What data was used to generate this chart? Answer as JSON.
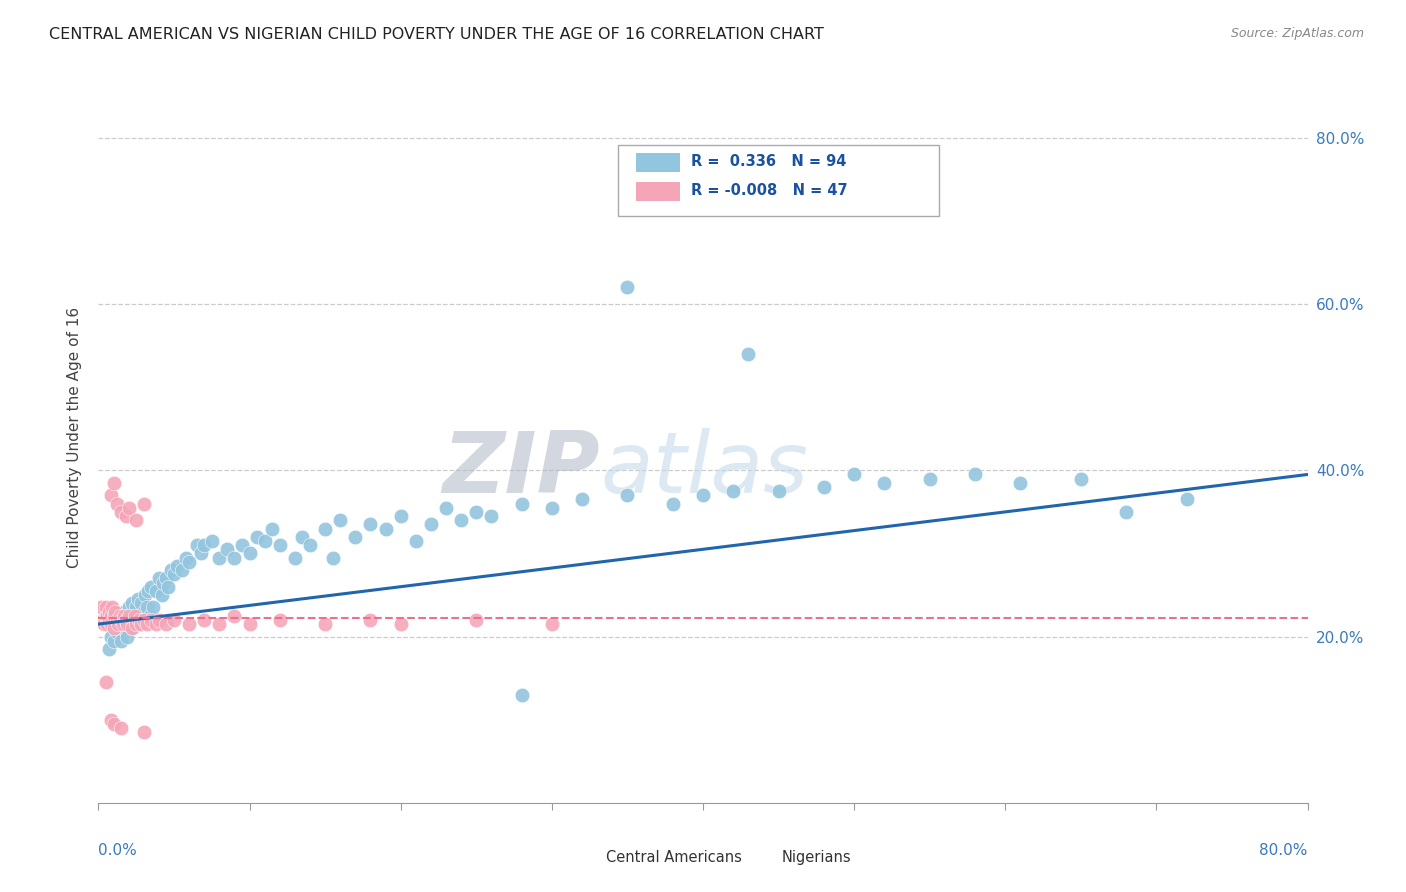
{
  "title": "CENTRAL AMERICAN VS NIGERIAN CHILD POVERTY UNDER THE AGE OF 16 CORRELATION CHART",
  "source": "Source: ZipAtlas.com",
  "ylabel": "Child Poverty Under the Age of 16",
  "color_blue": "#92c5de",
  "color_pink": "#f4a6b8",
  "line_blue": "#2166ac",
  "line_pink": "#e87090",
  "watermark_zip": "ZIP",
  "watermark_atlas": "atlas",
  "background_color": "#ffffff",
  "xmin": 0.0,
  "xmax": 0.8,
  "ymin": 0.0,
  "ymax": 0.88,
  "yticks": [
    0.2,
    0.4,
    0.6,
    0.8
  ],
  "ca_x": [
    0.005,
    0.007,
    0.008,
    0.01,
    0.01,
    0.012,
    0.013,
    0.015,
    0.015,
    0.016,
    0.017,
    0.018,
    0.018,
    0.019,
    0.02,
    0.02,
    0.021,
    0.022,
    0.022,
    0.023,
    0.024,
    0.025,
    0.025,
    0.026,
    0.027,
    0.028,
    0.03,
    0.031,
    0.032,
    0.033,
    0.034,
    0.035,
    0.036,
    0.038,
    0.04,
    0.042,
    0.043,
    0.045,
    0.046,
    0.048,
    0.05,
    0.052,
    0.055,
    0.058,
    0.06,
    0.065,
    0.068,
    0.07,
    0.075,
    0.08,
    0.085,
    0.09,
    0.095,
    0.1,
    0.105,
    0.11,
    0.115,
    0.12,
    0.13,
    0.135,
    0.14,
    0.15,
    0.155,
    0.16,
    0.17,
    0.18,
    0.19,
    0.2,
    0.21,
    0.22,
    0.23,
    0.24,
    0.25,
    0.26,
    0.28,
    0.3,
    0.32,
    0.35,
    0.38,
    0.4,
    0.42,
    0.45,
    0.48,
    0.5,
    0.52,
    0.55,
    0.58,
    0.61,
    0.65,
    0.68,
    0.72,
    0.35,
    0.28,
    0.43
  ],
  "ca_y": [
    0.215,
    0.185,
    0.2,
    0.22,
    0.195,
    0.205,
    0.21,
    0.22,
    0.195,
    0.215,
    0.23,
    0.21,
    0.225,
    0.2,
    0.215,
    0.235,
    0.22,
    0.21,
    0.24,
    0.22,
    0.225,
    0.235,
    0.215,
    0.245,
    0.22,
    0.24,
    0.23,
    0.25,
    0.235,
    0.255,
    0.225,
    0.26,
    0.235,
    0.255,
    0.27,
    0.25,
    0.265,
    0.27,
    0.26,
    0.28,
    0.275,
    0.285,
    0.28,
    0.295,
    0.29,
    0.31,
    0.3,
    0.31,
    0.315,
    0.295,
    0.305,
    0.295,
    0.31,
    0.3,
    0.32,
    0.315,
    0.33,
    0.31,
    0.295,
    0.32,
    0.31,
    0.33,
    0.295,
    0.34,
    0.32,
    0.335,
    0.33,
    0.345,
    0.315,
    0.335,
    0.355,
    0.34,
    0.35,
    0.345,
    0.36,
    0.355,
    0.365,
    0.37,
    0.36,
    0.37,
    0.375,
    0.375,
    0.38,
    0.395,
    0.385,
    0.39,
    0.395,
    0.385,
    0.39,
    0.35,
    0.365,
    0.62,
    0.13,
    0.54
  ],
  "ng_x": [
    0.002,
    0.003,
    0.004,
    0.005,
    0.005,
    0.006,
    0.006,
    0.007,
    0.007,
    0.008,
    0.008,
    0.009,
    0.01,
    0.01,
    0.011,
    0.012,
    0.013,
    0.014,
    0.015,
    0.016,
    0.017,
    0.018,
    0.019,
    0.02,
    0.022,
    0.024,
    0.025,
    0.027,
    0.028,
    0.03,
    0.032,
    0.035,
    0.038,
    0.04,
    0.045,
    0.05,
    0.06,
    0.07,
    0.08,
    0.09,
    0.1,
    0.12,
    0.15,
    0.18,
    0.2,
    0.25,
    0.3
  ],
  "ng_y": [
    0.235,
    0.22,
    0.215,
    0.225,
    0.235,
    0.215,
    0.225,
    0.22,
    0.23,
    0.215,
    0.225,
    0.235,
    0.21,
    0.225,
    0.23,
    0.22,
    0.215,
    0.225,
    0.22,
    0.215,
    0.225,
    0.22,
    0.215,
    0.225,
    0.21,
    0.225,
    0.215,
    0.22,
    0.215,
    0.22,
    0.215,
    0.22,
    0.215,
    0.22,
    0.215,
    0.22,
    0.215,
    0.22,
    0.215,
    0.225,
    0.215,
    0.22,
    0.215,
    0.22,
    0.215,
    0.22,
    0.215
  ],
  "ng_y_outliers": [
    0.37,
    0.385,
    0.36,
    0.35,
    0.345,
    0.355,
    0.34,
    0.36,
    0.145,
    0.1,
    0.095,
    0.09,
    0.085
  ],
  "ng_x_outliers": [
    0.008,
    0.01,
    0.012,
    0.015,
    0.018,
    0.02,
    0.025,
    0.03,
    0.005,
    0.008,
    0.01,
    0.015,
    0.03
  ],
  "ca_line_x0": 0.0,
  "ca_line_x1": 0.8,
  "ca_line_y0": 0.215,
  "ca_line_y1": 0.395,
  "ng_line_y": 0.222
}
